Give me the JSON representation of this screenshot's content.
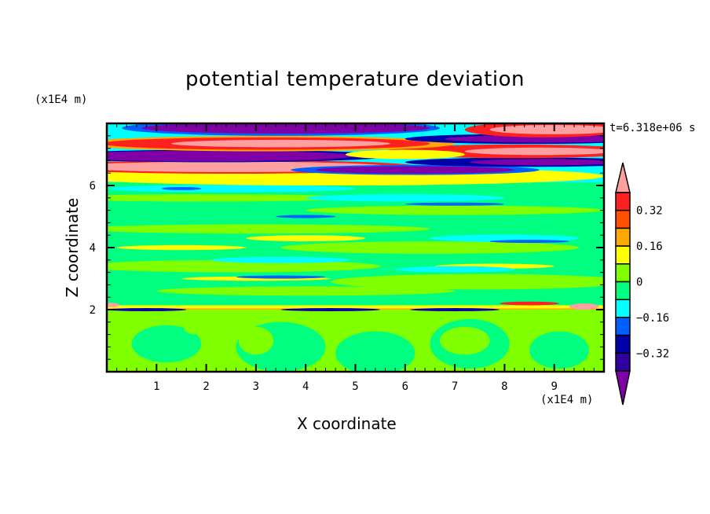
{
  "chart_data": {
    "type": "heatmap",
    "subtype": "filled-contour",
    "title": "potential temperature deviation",
    "xlabel": "X coordinate",
    "ylabel": "Z coordinate",
    "x_unit": "(x1E4 m)",
    "y_unit": "(x1E4 m)",
    "time_label": "t=6.318e+06 s",
    "xlim": [
      0,
      10
    ],
    "ylim": [
      0,
      8
    ],
    "x_ticks": [
      1,
      2,
      3,
      4,
      5,
      6,
      7,
      8,
      9
    ],
    "y_ticks": [
      2,
      4,
      6
    ],
    "colorbar": {
      "levels": [
        -0.4,
        -0.32,
        -0.24,
        -0.16,
        -0.08,
        0,
        0.08,
        0.16,
        0.24,
        0.32,
        0.4
      ],
      "tick_labels": [
        "0.32",
        "0.16",
        "0",
        "−0.16",
        "−0.32"
      ],
      "tick_values": [
        0.32,
        0.16,
        0,
        -0.16,
        -0.32
      ],
      "colors_low_to_high": [
        "#3000a0",
        "#0000a8",
        "#0060ff",
        "#00ffff",
        "#00ff80",
        "#80ff00",
        "#ffff00",
        "#ffa800",
        "#ff5000",
        "#ff2020"
      ],
      "over_color": "#ffa0a0",
      "under_color": "#8000a8",
      "extend": "both"
    }
  }
}
